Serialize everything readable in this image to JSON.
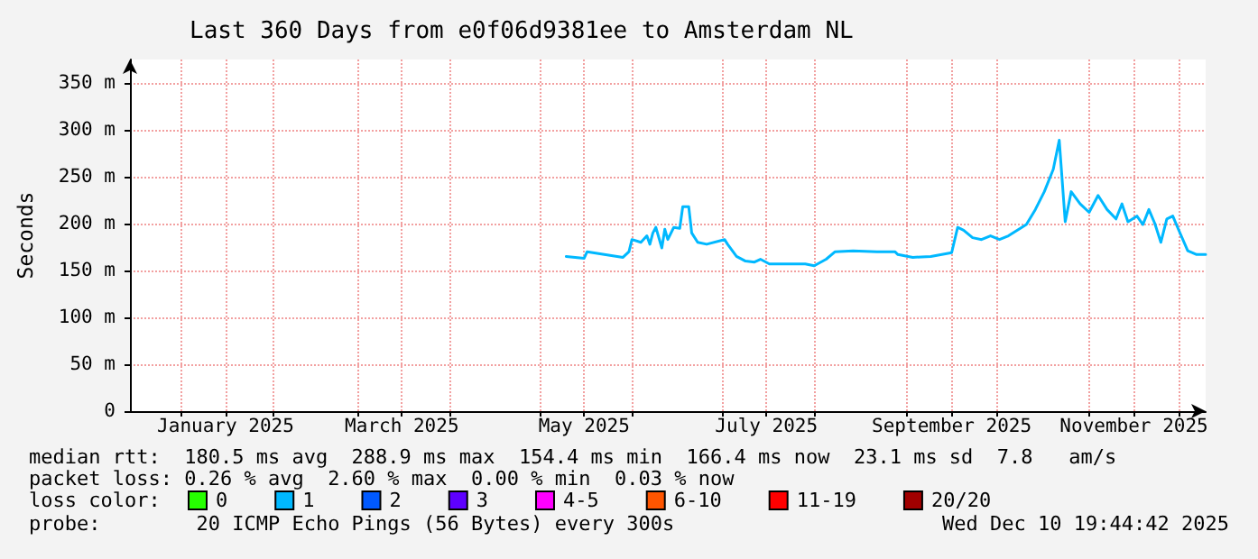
{
  "chart_data": {
    "type": "line",
    "title": "Last 360 Days from e0f06d9381ee to Amsterdam NL",
    "ylabel": "Seconds",
    "xlim": [
      "2024-12-15",
      "2025-12-10"
    ],
    "xticks": [
      {
        "value": "2025-01-01",
        "label": null
      },
      {
        "value": "2025-01-16",
        "label": "January 2025"
      },
      {
        "value": "2025-02-01",
        "label": null
      },
      {
        "value": "2025-03-01",
        "label": null
      },
      {
        "value": "2025-03-16",
        "label": "March 2025"
      },
      {
        "value": "2025-04-01",
        "label": null
      },
      {
        "value": "2025-05-01",
        "label": null
      },
      {
        "value": "2025-05-16",
        "label": "May 2025"
      },
      {
        "value": "2025-06-01",
        "label": null
      },
      {
        "value": "2025-07-01",
        "label": null
      },
      {
        "value": "2025-07-16",
        "label": "July 2025"
      },
      {
        "value": "2025-08-01",
        "label": null
      },
      {
        "value": "2025-09-01",
        "label": null
      },
      {
        "value": "2025-09-16",
        "label": "September 2025"
      },
      {
        "value": "2025-10-01",
        "label": null
      },
      {
        "value": "2025-11-01",
        "label": null
      },
      {
        "value": "2025-11-16",
        "label": "November 2025"
      },
      {
        "value": "2025-12-01",
        "label": null
      }
    ],
    "ylim": [
      0,
      375
    ],
    "yticks": [
      0,
      {
        "value": 50,
        "label": "50 m"
      },
      {
        "value": 100,
        "label": "100 m"
      },
      {
        "value": 150,
        "label": "150 m"
      },
      {
        "value": 200,
        "label": "200 m"
      },
      {
        "value": 250,
        "label": "250 m"
      },
      {
        "value": 300,
        "label": "300 m"
      },
      {
        "value": 350,
        "label": "350 m"
      }
    ],
    "grid": true,
    "legend": "bottom",
    "legend_title": "loss color:",
    "marker": "none",
    "series": [
      {
        "color": "#00b8ff",
        "x": [
          "2025-05-10",
          "2025-05-16",
          "2025-05-17",
          "2025-05-29",
          "2025-05-31",
          "2025-06-01",
          "2025-06-04",
          "2025-06-06",
          "2025-06-07",
          "2025-06-08",
          "2025-06-09",
          "2025-06-11",
          "2025-06-12",
          "2025-06-13",
          "2025-06-15",
          "2025-06-17",
          "2025-06-18",
          "2025-06-20",
          "2025-06-21",
          "2025-06-23",
          "2025-06-26",
          "2025-07-02",
          "2025-07-03",
          "2025-07-06",
          "2025-07-09",
          "2025-07-12",
          "2025-07-14",
          "2025-07-17",
          "2025-07-23",
          "2025-07-29",
          "2025-08-01",
          "2025-08-05",
          "2025-08-08",
          "2025-08-14",
          "2025-08-22",
          "2025-08-28",
          "2025-08-29",
          "2025-09-03",
          "2025-09-09",
          "2025-09-16",
          "2025-09-18",
          "2025-09-20",
          "2025-09-23",
          "2025-09-26",
          "2025-09-29",
          "2025-10-02",
          "2025-10-05",
          "2025-10-08",
          "2025-10-11",
          "2025-10-14",
          "2025-10-17",
          "2025-10-20",
          "2025-10-22",
          "2025-10-24",
          "2025-10-26",
          "2025-10-29",
          "2025-11-01",
          "2025-11-04",
          "2025-11-07",
          "2025-11-10",
          "2025-11-12",
          "2025-11-14",
          "2025-11-17",
          "2025-11-19",
          "2025-11-21",
          "2025-11-23",
          "2025-11-25",
          "2025-11-27",
          "2025-11-29",
          "2025-12-01",
          "2025-12-04",
          "2025-12-07",
          "2025-12-10"
        ],
        "values": [
          165,
          163,
          170,
          164,
          170,
          183,
          180,
          187,
          178,
          190,
          196,
          174,
          194,
          183,
          196,
          195,
          218,
          218,
          190,
          180,
          178,
          183,
          178,
          165,
          160,
          159,
          162,
          157,
          157,
          157,
          155,
          162,
          170,
          171,
          170,
          170,
          167,
          164,
          165,
          169,
          196,
          193,
          185,
          183,
          187,
          183,
          187,
          193,
          199,
          215,
          234,
          258,
          289,
          202,
          234,
          221,
          212,
          230,
          215,
          205,
          221,
          202,
          208,
          199,
          215,
          200,
          180,
          205,
          208,
          193,
          171,
          167,
          167
        ]
      },
      {
        "name": "0",
        "color": "#26ff00"
      },
      {
        "name": "1",
        "color": "#00b8ff"
      },
      {
        "name": "2",
        "color": "#0059ff"
      },
      {
        "name": "3",
        "color": "#5e00ff"
      },
      {
        "name": "4-5",
        "color": "#ff00ff"
      },
      {
        "name": "6-10",
        "color": "#ff5500"
      },
      {
        "name": "11-19",
        "color": "#ff0000"
      },
      {
        "name": "20/20",
        "color": "#a10000"
      }
    ],
    "annotations": [
      "median rtt:  180.5 ms avg  288.9 ms max  154.4 ms min  166.4 ms now  23.1 ms sd  7.8   am/s",
      "packet loss: 0.26 % avg  2.60 % max  0.00 % min  0.03 % now",
      "probe:        20 ICMP Echo Pings (56 Bytes) every 300s",
      "Wed Dec 10 19:44:42 2025"
    ]
  }
}
